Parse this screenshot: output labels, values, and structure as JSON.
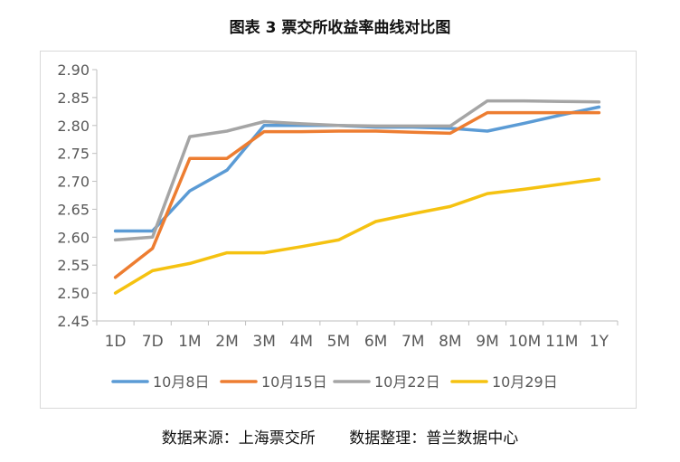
{
  "title": "图表 3 票交所收益率曲线对比图",
  "footer": {
    "source": "数据来源：上海票交所",
    "compiled": "数据整理：普兰数据中心"
  },
  "chart_data": {
    "type": "line",
    "title": "",
    "xlabel": "",
    "ylabel": "",
    "categories": [
      "1D",
      "7D",
      "1M",
      "2M",
      "3M",
      "4M",
      "5M",
      "6M",
      "7M",
      "8M",
      "9M",
      "10M",
      "11M",
      "1Y"
    ],
    "ylim": [
      2.45,
      2.9
    ],
    "yticks": [
      "2.45",
      "2.50",
      "2.55",
      "2.60",
      "2.65",
      "2.70",
      "2.75",
      "2.80",
      "2.85",
      "2.90"
    ],
    "grid": false,
    "legend_position": "bottom",
    "series": [
      {
        "name": "10月8日",
        "color": "#5b9bd5",
        "values": [
          2.611,
          2.611,
          2.683,
          2.72,
          2.8,
          2.8,
          2.8,
          2.797,
          2.797,
          2.795,
          2.79,
          2.804,
          2.819,
          2.833
        ]
      },
      {
        "name": "10月15日",
        "color": "#ed7d31",
        "values": [
          2.528,
          2.58,
          2.741,
          2.741,
          2.789,
          2.789,
          2.79,
          2.79,
          2.788,
          2.786,
          2.823,
          2.823,
          2.823,
          2.823
        ]
      },
      {
        "name": "10月22日",
        "color": "#a5a5a5",
        "values": [
          2.595,
          2.6,
          2.78,
          2.79,
          2.807,
          2.803,
          2.8,
          2.799,
          2.799,
          2.799,
          2.844,
          2.844,
          2.843,
          2.842
        ]
      },
      {
        "name": "10月29日",
        "color": "#f5c211",
        "values": [
          2.5,
          2.54,
          2.553,
          2.572,
          2.572,
          2.583,
          2.595,
          2.628,
          2.642,
          2.655,
          2.678,
          2.686,
          2.695,
          2.704
        ]
      }
    ]
  }
}
